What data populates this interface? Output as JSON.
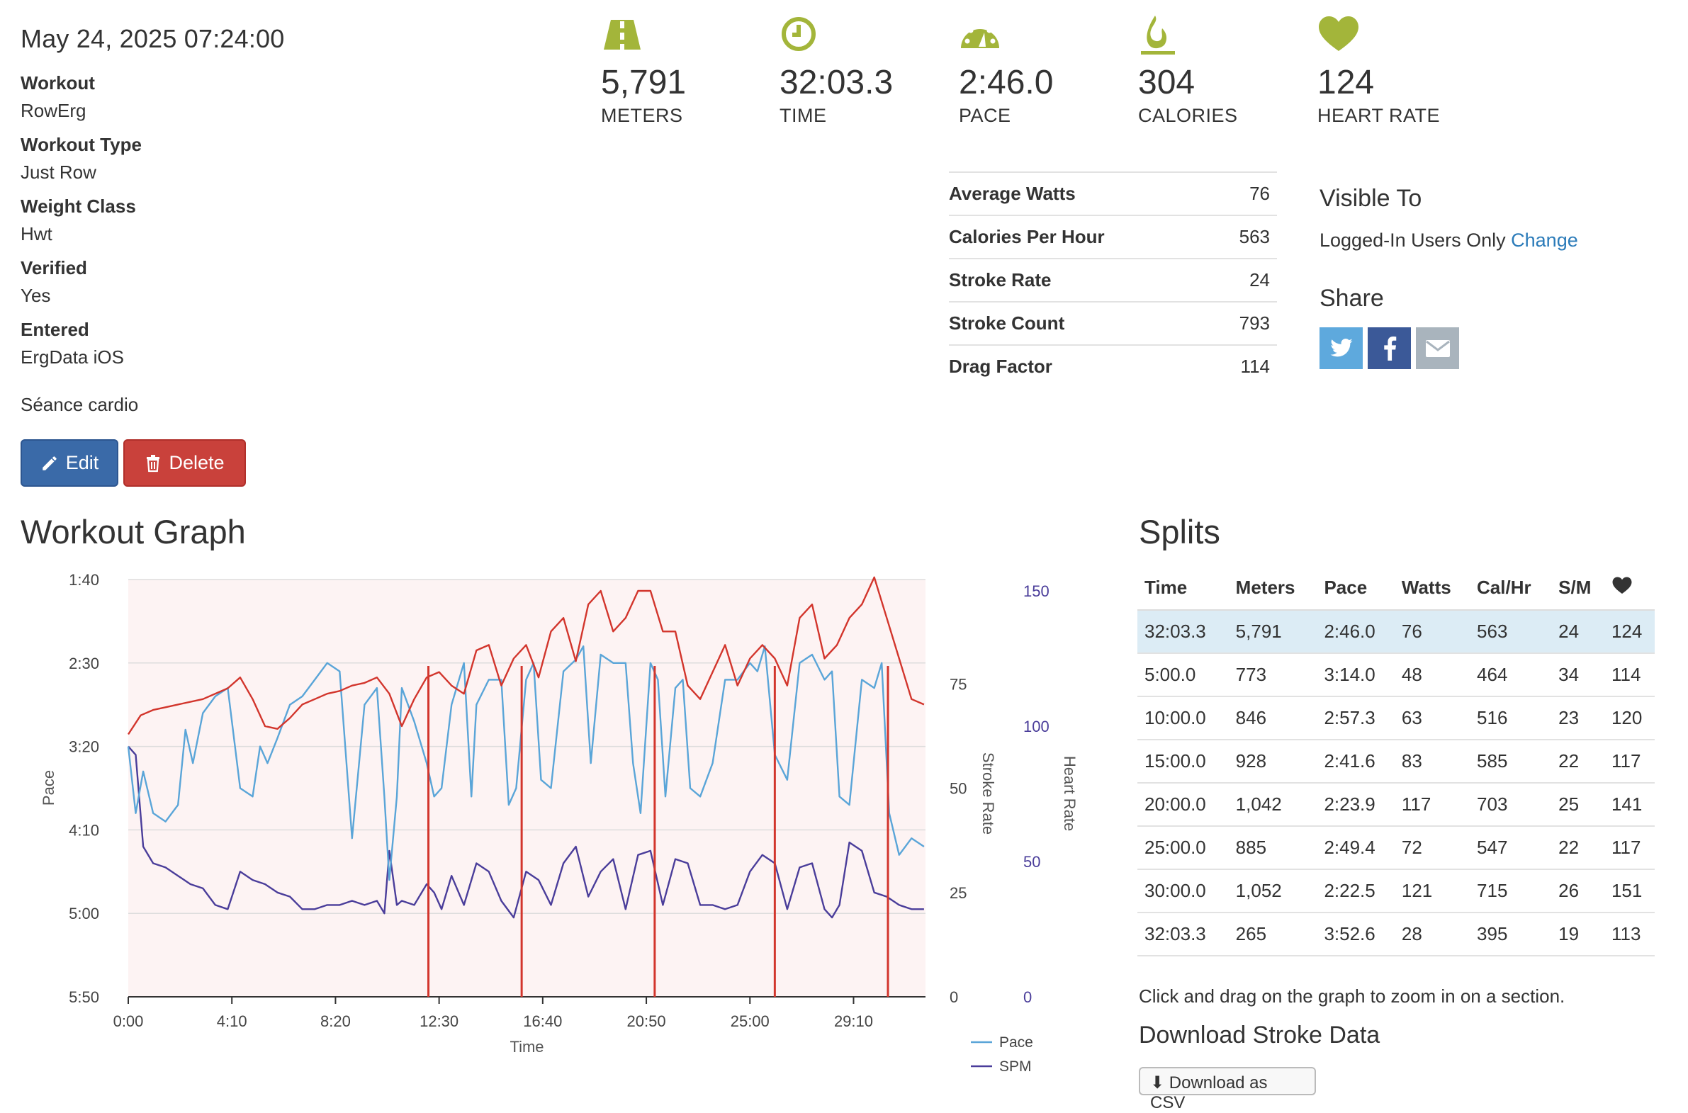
{
  "workout": {
    "date": "May 24, 2025 07:24:00",
    "details": [
      {
        "label": "Workout",
        "value": "RowErg"
      },
      {
        "label": "Workout Type",
        "value": "Just Row"
      },
      {
        "label": "Weight Class",
        "value": "Hwt"
      },
      {
        "label": "Verified",
        "value": "Yes"
      },
      {
        "label": "Entered",
        "value": "ErgData iOS"
      }
    ],
    "comment": "Séance cardio",
    "edit_label": "Edit",
    "delete_label": "Delete"
  },
  "stats": [
    {
      "icon": "road-icon",
      "value": "5,791",
      "label": "METERS"
    },
    {
      "icon": "clock-icon",
      "value": "32:03.3",
      "label": "TIME"
    },
    {
      "icon": "speedometer-icon",
      "value": "2:46.0",
      "label": "PACE"
    },
    {
      "icon": "flame-icon",
      "value": "304",
      "label": "CALORIES"
    },
    {
      "icon": "heart-icon",
      "value": "124",
      "label": "HEART RATE"
    }
  ],
  "metrics": [
    {
      "label": "Average Watts",
      "value": "76"
    },
    {
      "label": "Calories Per Hour",
      "value": "563"
    },
    {
      "label": "Stroke Rate",
      "value": "24"
    },
    {
      "label": "Stroke Count",
      "value": "793"
    },
    {
      "label": "Drag Factor",
      "value": "114"
    }
  ],
  "visibility": {
    "heading": "Visible To",
    "value": "Logged-In Users Only",
    "change_label": "Change"
  },
  "share": {
    "heading": "Share",
    "buttons": [
      {
        "icon": "twitter-icon",
        "color": "#5ea9dd"
      },
      {
        "icon": "facebook-icon",
        "color": "#3b5998"
      },
      {
        "icon": "email-icon",
        "color": "#a9b4bd"
      }
    ]
  },
  "graph": {
    "heading": "Workout Graph",
    "hint": "Click and drag on the graph to zoom in on a section."
  },
  "splits": {
    "heading": "Splits",
    "columns": [
      "Time",
      "Meters",
      "Pace",
      "Watts",
      "Cal/Hr",
      "S/M",
      ""
    ],
    "rows": [
      [
        "32:03.3",
        "5,791",
        "2:46.0",
        "76",
        "563",
        "24",
        "124"
      ],
      [
        "5:00.0",
        "773",
        "3:14.0",
        "48",
        "464",
        "34",
        "114"
      ],
      [
        "10:00.0",
        "846",
        "2:57.3",
        "63",
        "516",
        "23",
        "120"
      ],
      [
        "15:00.0",
        "928",
        "2:41.6",
        "83",
        "585",
        "22",
        "117"
      ],
      [
        "20:00.0",
        "1,042",
        "2:23.9",
        "117",
        "703",
        "25",
        "141"
      ],
      [
        "25:00.0",
        "885",
        "2:49.4",
        "72",
        "547",
        "22",
        "117"
      ],
      [
        "30:00.0",
        "1,052",
        "2:22.5",
        "121",
        "715",
        "26",
        "151"
      ],
      [
        "32:03.3",
        "265",
        "3:52.6",
        "28",
        "395",
        "19",
        "113"
      ]
    ]
  },
  "download": {
    "heading": "Download Stroke Data",
    "button_label": "Download as CSV"
  },
  "colors": {
    "accent_olive": "#a3b53a",
    "pace": "#5aa5d8",
    "spm": "#4a3d9a",
    "heart": "#d2352c",
    "area_fill": "#fdf3f3",
    "link": "#2b7bb9"
  },
  "chart_data": {
    "type": "line",
    "xlabel": "Time",
    "x_ticks": [
      "0:00",
      "4:10",
      "8:20",
      "12:30",
      "16:40",
      "20:50",
      "25:00",
      "29:10"
    ],
    "x_range_minutes": [
      0,
      32.06
    ],
    "axes": {
      "pace": {
        "label": "Pace",
        "ticks": [
          "1:40",
          "2:30",
          "3:20",
          "4:10",
          "5:00",
          "5:50"
        ],
        "range_seconds": [
          100,
          350
        ],
        "inverted": true
      },
      "stroke_rate": {
        "label": "Stroke Rate",
        "ticks": [
          "0",
          "25",
          "50",
          "75"
        ],
        "range": [
          0,
          100
        ]
      },
      "heart_rate": {
        "label": "Heart Rate",
        "ticks": [
          "0",
          "50",
          "100",
          "150"
        ],
        "range": [
          0,
          150
        ]
      }
    },
    "split_markers_minutes": [
      12.07,
      15.82,
      21.17,
      26.0,
      30.55
    ],
    "series": [
      {
        "name": "Pace",
        "axis": "pace",
        "color": "#5aa5d8",
        "x": [
          0,
          0.3,
          0.6,
          1,
          1.5,
          2,
          2.3,
          2.6,
          3,
          3.5,
          4,
          4.5,
          5,
          5.3,
          5.6,
          6,
          6.5,
          7,
          7.5,
          8,
          8.5,
          9,
          9.5,
          10,
          10.3,
          10.5,
          10.8,
          11,
          11.5,
          12,
          12.3,
          12.6,
          13,
          13.5,
          13.8,
          14,
          14.5,
          15,
          15.3,
          15.6,
          16,
          16.3,
          16.6,
          17,
          17.5,
          18,
          18.3,
          18.6,
          19,
          19.5,
          20,
          20.3,
          20.6,
          21,
          21.3,
          21.6,
          22,
          22.3,
          22.6,
          23,
          23.5,
          24,
          24.5,
          25,
          25.3,
          25.6,
          26,
          26.5,
          27,
          27.5,
          28,
          28.3,
          28.6,
          29,
          29.5,
          30,
          30.3,
          30.6,
          31,
          31.5,
          32
        ],
        "y": [
          200,
          240,
          215,
          240,
          245,
          235,
          190,
          210,
          180,
          170,
          165,
          225,
          230,
          200,
          210,
          195,
          175,
          170,
          160,
          150,
          155,
          255,
          175,
          165,
          230,
          280,
          230,
          165,
          185,
          210,
          230,
          225,
          175,
          150,
          230,
          175,
          160,
          160,
          235,
          225,
          160,
          150,
          220,
          225,
          155,
          148,
          140,
          210,
          145,
          150,
          150,
          210,
          240,
          150,
          160,
          230,
          165,
          160,
          225,
          230,
          210,
          160,
          160,
          150,
          155,
          140,
          205,
          220,
          150,
          145,
          160,
          155,
          230,
          235,
          160,
          165,
          150,
          240,
          265,
          255,
          260
        ]
      },
      {
        "name": "SPM",
        "axis": "stroke_rate",
        "color": "#4a3d9a",
        "x": [
          0,
          0.3,
          0.6,
          1,
          1.5,
          2,
          2.5,
          3,
          3.5,
          4,
          4.5,
          5,
          5.5,
          6,
          6.5,
          7,
          7.5,
          8,
          8.5,
          9,
          9.5,
          10,
          10.3,
          10.5,
          10.8,
          11,
          11.5,
          12,
          12.3,
          12.6,
          13,
          13.5,
          14,
          14.5,
          15,
          15.5,
          16,
          16.5,
          17,
          17.5,
          18,
          18.5,
          19,
          19.5,
          20,
          20.5,
          21,
          21.5,
          22,
          22.5,
          23,
          23.5,
          24,
          24.5,
          25,
          25.5,
          26,
          26.5,
          27,
          27.5,
          28,
          28.3,
          28.6,
          29,
          29.5,
          30,
          30.5,
          31,
          31.5,
          32
        ],
        "y": [
          60,
          58,
          36,
          32,
          31,
          29,
          27,
          26,
          22,
          21,
          30,
          28,
          27,
          25,
          24,
          21,
          21,
          22,
          22,
          23,
          22,
          23,
          20,
          35,
          22,
          23,
          22,
          27,
          25,
          21,
          29,
          22,
          32,
          30,
          23,
          19,
          30,
          28,
          22,
          32,
          36,
          24,
          30,
          33,
          21,
          34,
          35,
          22,
          33,
          32,
          22,
          22,
          21,
          22,
          30,
          34,
          32,
          21,
          31,
          32,
          21,
          19,
          22,
          37,
          35,
          25,
          24,
          22,
          21,
          21
        ]
      },
      {
        "name": "Heart Rate",
        "axis": "heart_rate",
        "color": "#d2352c",
        "x": [
          0,
          0.5,
          1,
          1.5,
          2,
          3,
          4,
          4.5,
          5,
          5.5,
          6,
          6.5,
          7,
          7.5,
          8,
          8.5,
          9,
          9.5,
          10,
          10.5,
          11,
          11.5,
          12,
          12.5,
          13,
          13.5,
          14,
          14.5,
          15,
          15.5,
          16,
          16.5,
          17,
          17.5,
          18,
          18.5,
          19,
          19.5,
          20,
          20.5,
          21,
          21.5,
          22,
          22.5,
          23,
          23.5,
          24,
          24.5,
          25,
          25.5,
          26,
          26.5,
          27,
          27.5,
          28,
          28.5,
          29,
          29.5,
          30,
          30.5,
          31,
          31.5,
          32
        ],
        "y": [
          97,
          104,
          106,
          107,
          108,
          110,
          114,
          118,
          110,
          100,
          99,
          103,
          108,
          110,
          112,
          113,
          115,
          116,
          118,
          112,
          100,
          110,
          118,
          120,
          115,
          112,
          128,
          130,
          115,
          125,
          130,
          118,
          135,
          140,
          124,
          145,
          150,
          135,
          140,
          150,
          150,
          135,
          135,
          115,
          110,
          120,
          130,
          115,
          125,
          130,
          125,
          115,
          140,
          145,
          125,
          130,
          140,
          145,
          155,
          140,
          125,
          110,
          108
        ]
      }
    ]
  }
}
